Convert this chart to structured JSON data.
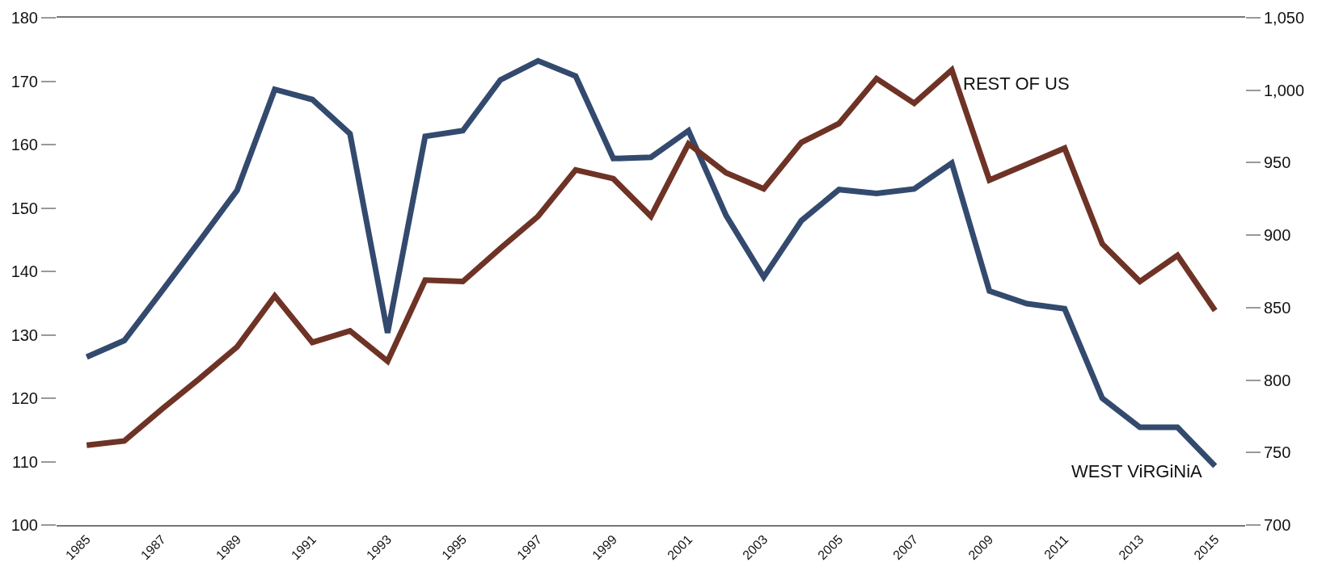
{
  "chart_data": {
    "type": "line",
    "x": [
      1985,
      1986,
      1987,
      1988,
      1989,
      1990,
      1991,
      1992,
      1993,
      1994,
      1995,
      1996,
      1997,
      1998,
      1999,
      2000,
      2001,
      2002,
      2003,
      2004,
      2005,
      2006,
      2007,
      2008,
      2009,
      2010,
      2011,
      2012,
      2013,
      2014,
      2015
    ],
    "series": [
      {
        "name": "WEST ViRGiNiA",
        "color": "#334a6e",
        "values": [
          126.5,
          129.1,
          136.9,
          144.8,
          152.8,
          168.7,
          167.1,
          161.7,
          130.3,
          161.3,
          162.2,
          170.2,
          173.2,
          170.8,
          157.8,
          158.0,
          162.2,
          148.8,
          139.1,
          148.0,
          152.9,
          152.3,
          153.0,
          157.1,
          136.9,
          134.9,
          134.1,
          120.0,
          115.4,
          115.4,
          109.3
        ]
      },
      {
        "name": "REST OF US",
        "color": "#6e3326",
        "axis": "y2",
        "values": [
          755,
          758,
          780,
          801,
          823,
          858,
          826,
          834,
          813,
          869,
          868,
          891,
          913,
          945,
          939,
          913,
          963,
          943,
          932,
          964,
          977,
          1008,
          991,
          1014,
          938,
          949,
          960,
          894,
          868,
          886,
          848
        ]
      }
    ],
    "xlim": [
      1984.2,
      2015.8
    ],
    "xticks": [
      1985,
      1987,
      1989,
      1991,
      1993,
      1995,
      1997,
      1999,
      2001,
      2003,
      2005,
      2007,
      2009,
      2011,
      2013,
      2015
    ],
    "ylim": [
      100,
      180
    ],
    "yticks": [
      100,
      110,
      120,
      130,
      140,
      150,
      160,
      170,
      180
    ],
    "y2lim": [
      700,
      1050
    ],
    "y2ticks": [
      700,
      750,
      800,
      850,
      900,
      950,
      {
        "value": 1000,
        "label": "1,000"
      },
      {
        "value": 1050,
        "label": "1,050"
      }
    ],
    "legend": false,
    "marker": "none",
    "line_style": "solid"
  }
}
